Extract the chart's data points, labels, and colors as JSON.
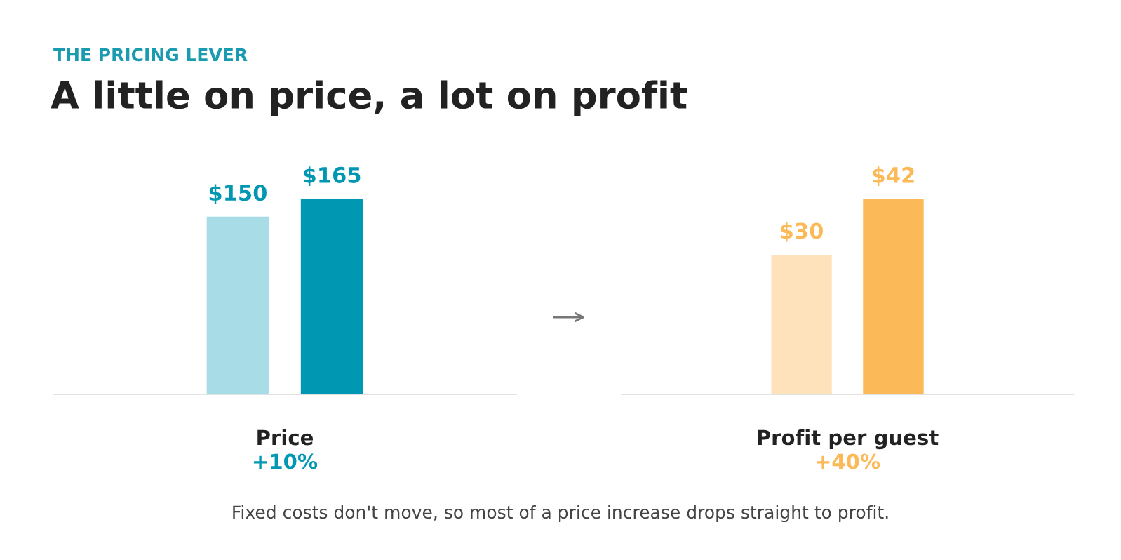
{
  "chart_data": [
    {
      "type": "bar",
      "title": "THE PRICING LEVER",
      "subtitle": "A little on price, a lot on profit",
      "categories": [
        null,
        null
      ],
      "values": [
        150,
        165
      ],
      "colors": [
        "#a8dce6",
        "#0097b2"
      ],
      "value_labels": [
        "$150",
        "$165"
      ],
      "xlabel": "Price",
      "annotations": [
        "+10%"
      ]
    },
    {
      "type": "bar",
      "categories": [
        null,
        null
      ],
      "values": [
        30,
        42
      ],
      "colors": [
        "#fde2bb",
        "#fbb957"
      ],
      "value_labels": [
        "$30",
        "$42"
      ],
      "xlabel": "Profit per guest",
      "annotations": [
        "+40%",
        "Fixed costs don't move, so most of a price increase drops straight to profit."
      ]
    }
  ]
}
